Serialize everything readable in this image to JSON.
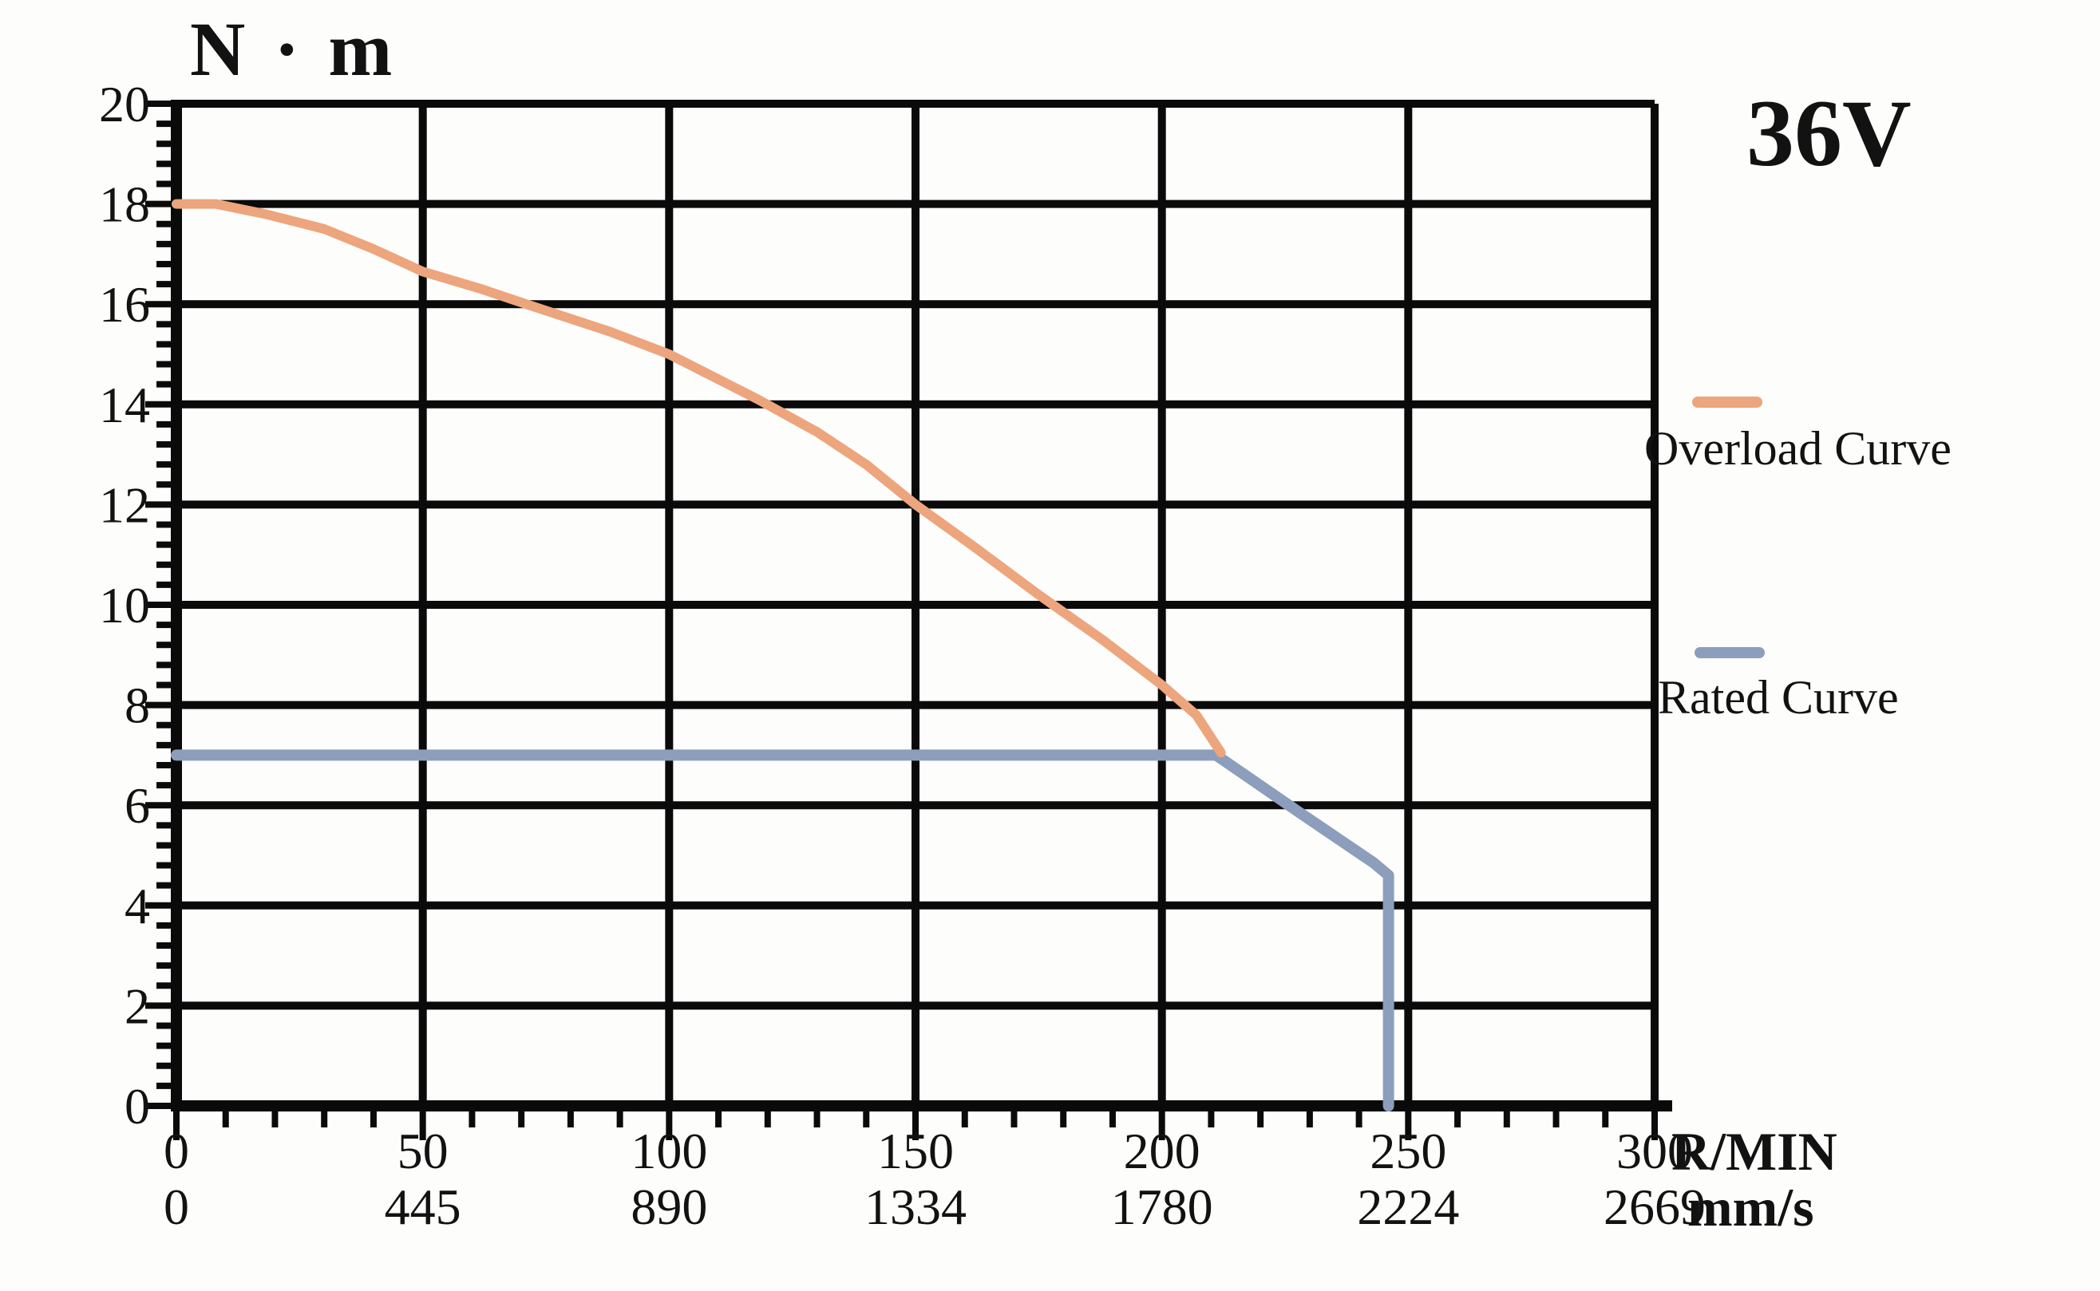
{
  "title": "36V",
  "y_axis_title": "N · m",
  "x_axis_unit_primary": "R/MIN",
  "x_axis_unit_secondary": "mm/s",
  "colors": {
    "overload": "#eca57d",
    "rated": "#8c9ebc",
    "grid": "#0a0a0a",
    "background": "#fdfdfb",
    "text": "#121212"
  },
  "legend": [
    {
      "name": "Overload Curve",
      "color": "#eca57d"
    },
    {
      "name": "Rated Curve",
      "color": "#8c9ebc"
    }
  ],
  "chart_data": {
    "type": "line",
    "title": "36V",
    "xlabel": "R/MIN",
    "xlabel_secondary": "mm/s",
    "ylabel": "N·m",
    "xlim": [
      0,
      300
    ],
    "ylim": [
      0,
      20
    ],
    "grid": true,
    "legend_position": "right",
    "x_major_ticks": [
      0,
      50,
      100,
      150,
      200,
      250,
      300
    ],
    "x_tick_labels_rmin": [
      "0",
      "50",
      "100",
      "150",
      "200",
      "250",
      "300"
    ],
    "x_tick_labels_mms": [
      "0",
      "445",
      "890",
      "1334",
      "1780",
      "2224",
      "2669"
    ],
    "y_major_ticks": [
      0,
      2,
      4,
      6,
      8,
      10,
      12,
      14,
      16,
      18,
      20
    ],
    "x_minor_step": 10,
    "y_minor_step": 0.4,
    "series": [
      {
        "name": "Rated Curve",
        "color": "#8c9ebc",
        "stroke_width": 14,
        "points": [
          [
            0,
            7
          ],
          [
            211,
            7
          ],
          [
            228,
            5.85
          ],
          [
            243,
            4.85
          ],
          [
            246,
            4.6
          ],
          [
            246,
            0
          ]
        ]
      },
      {
        "name": "Overload Curve",
        "color": "#eca57d",
        "stroke_width": 12,
        "points": [
          [
            0,
            18
          ],
          [
            8,
            18
          ],
          [
            18,
            17.8
          ],
          [
            30,
            17.5
          ],
          [
            40,
            17.1
          ],
          [
            50,
            16.65
          ],
          [
            62,
            16.3
          ],
          [
            71,
            16.0
          ],
          [
            88,
            15.45
          ],
          [
            100,
            15.0
          ],
          [
            108,
            14.6
          ],
          [
            118,
            14.1
          ],
          [
            130,
            13.45
          ],
          [
            140,
            12.8
          ],
          [
            150,
            12.0
          ],
          [
            162,
            11.15
          ],
          [
            175,
            10.2
          ],
          [
            188,
            9.3
          ],
          [
            200,
            8.4
          ],
          [
            207,
            7.8
          ],
          [
            212,
            7.05
          ]
        ]
      }
    ]
  }
}
